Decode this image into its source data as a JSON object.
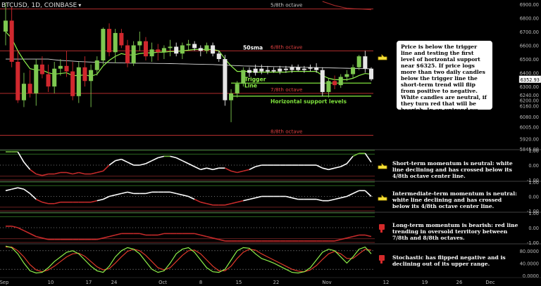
{
  "header": {
    "symbol_label": "BTCUSD, 1D, COINBASE",
    "arrow_glyph": "▾"
  },
  "colors": {
    "bullish_candle": "#7ec850",
    "bearish_candle": "#d0282e",
    "neutral_candle": "#e6e6e6",
    "octave_line": "#b32d2d",
    "sma_line": "#d8d8d8",
    "trigger_line": "#8ef04a",
    "support_line": "#7ee03c",
    "momentum_white": "#ffffff",
    "momentum_red": "#c62a2a",
    "momentum_green": "#6fb83a",
    "stoch_k": "#8ef04a",
    "stoch_d": "#e03a2a",
    "background": "#000000"
  },
  "chart_data": [
    {
      "type": "candlestick",
      "title": "",
      "ylim": [
        5845,
        6920
      ],
      "yticks": [
        "6900.00",
        "6800.00",
        "6700.00",
        "6600.00",
        "6500.00",
        "6400.00",
        "6300.00",
        "6240.00",
        "6200.00",
        "6160.00",
        "6080.00",
        "6005.00",
        "5920.00",
        "5845.00"
      ],
      "price_label": "6352.93",
      "x_ticks": [
        "Sep",
        "10",
        "17",
        "24",
        "Oct",
        "8",
        "15",
        "22",
        "Nov",
        "12",
        "19",
        "26",
        "Dec"
      ],
      "annotations": {
        "octave_5_8": "5/8th octave",
        "octave_6_8": "6/8th octave",
        "octave_7_8": "7/8th octave",
        "octave_8_8": "8/8th octave",
        "sma": "50sma",
        "trigger_line_1": "Trigger",
        "trigger_line_2": "Line",
        "support": "Horizontal support levels"
      },
      "candles": [
        {
          "o": 6700,
          "h": 6910,
          "l": 6600,
          "c": 6780
        },
        {
          "o": 6780,
          "h": 6880,
          "l": 6440,
          "c": 6480
        },
        {
          "o": 6480,
          "h": 6560,
          "l": 6180,
          "c": 6200
        },
        {
          "o": 6200,
          "h": 6400,
          "l": 6150,
          "c": 6320
        },
        {
          "o": 6320,
          "h": 6420,
          "l": 6220,
          "c": 6250
        },
        {
          "o": 6250,
          "h": 6500,
          "l": 6160,
          "c": 6460
        },
        {
          "o": 6460,
          "h": 6520,
          "l": 6360,
          "c": 6390
        },
        {
          "o": 6390,
          "h": 6460,
          "l": 6260,
          "c": 6300
        },
        {
          "o": 6300,
          "h": 6480,
          "l": 6250,
          "c": 6430
        },
        {
          "o": 6430,
          "h": 6500,
          "l": 6380,
          "c": 6450
        },
        {
          "o": 6450,
          "h": 6560,
          "l": 6370,
          "c": 6410
        },
        {
          "o": 6410,
          "h": 6480,
          "l": 6200,
          "c": 6230
        },
        {
          "o": 6230,
          "h": 6480,
          "l": 6180,
          "c": 6440
        },
        {
          "o": 6440,
          "h": 6520,
          "l": 6300,
          "c": 6340
        },
        {
          "o": 6340,
          "h": 6460,
          "l": 6150,
          "c": 6420
        },
        {
          "o": 6420,
          "h": 6520,
          "l": 6380,
          "c": 6490
        },
        {
          "o": 6490,
          "h": 6730,
          "l": 6460,
          "c": 6720
        },
        {
          "o": 6720,
          "h": 6760,
          "l": 6520,
          "c": 6550
        },
        {
          "o": 6550,
          "h": 6720,
          "l": 6470,
          "c": 6690
        },
        {
          "o": 6690,
          "h": 6720,
          "l": 6580,
          "c": 6600
        },
        {
          "o": 6600,
          "h": 6640,
          "l": 6440,
          "c": 6470
        },
        {
          "o": 6470,
          "h": 6630,
          "l": 6450,
          "c": 6600
        },
        {
          "o": 6600,
          "h": 6700,
          "l": 6560,
          "c": 6630
        },
        {
          "o": 6630,
          "h": 6660,
          "l": 6490,
          "c": 6520
        },
        {
          "o": 6520,
          "h": 6620,
          "l": 6480,
          "c": 6570
        },
        {
          "o": 6570,
          "h": 6610,
          "l": 6490,
          "c": 6550
        },
        {
          "o": 6550,
          "h": 6600,
          "l": 6500,
          "c": 6580
        },
        {
          "o": 6580,
          "h": 6640,
          "l": 6520,
          "c": 6590
        },
        {
          "o": 6590,
          "h": 6620,
          "l": 6520,
          "c": 6540
        },
        {
          "o": 6540,
          "h": 6620,
          "l": 6500,
          "c": 6600
        },
        {
          "o": 6600,
          "h": 6640,
          "l": 6560,
          "c": 6610
        },
        {
          "o": 6610,
          "h": 6630,
          "l": 6560,
          "c": 6580
        },
        {
          "o": 6580,
          "h": 6600,
          "l": 6520,
          "c": 6560
        },
        {
          "o": 6560,
          "h": 6620,
          "l": 6540,
          "c": 6600
        },
        {
          "o": 6600,
          "h": 6620,
          "l": 6520,
          "c": 6540
        },
        {
          "o": 6540,
          "h": 6560,
          "l": 6480,
          "c": 6500
        },
        {
          "o": 6500,
          "h": 6530,
          "l": 6160,
          "c": 6200
        },
        {
          "o": 6200,
          "h": 6280,
          "l": 6040,
          "c": 6250
        },
        {
          "o": 6250,
          "h": 6340,
          "l": 6220,
          "c": 6320
        },
        {
          "o": 6320,
          "h": 6440,
          "l": 6300,
          "c": 6420
        },
        {
          "o": 6420,
          "h": 6440,
          "l": 6370,
          "c": 6400
        },
        {
          "o": 6400,
          "h": 6460,
          "l": 6380,
          "c": 6430
        },
        {
          "o": 6430,
          "h": 6460,
          "l": 6390,
          "c": 6410
        },
        {
          "o": 6410,
          "h": 6450,
          "l": 6390,
          "c": 6420
        },
        {
          "o": 6420,
          "h": 6440,
          "l": 6400,
          "c": 6410
        },
        {
          "o": 6410,
          "h": 6450,
          "l": 6390,
          "c": 6430
        },
        {
          "o": 6430,
          "h": 6450,
          "l": 6400,
          "c": 6420
        },
        {
          "o": 6420,
          "h": 6460,
          "l": 6400,
          "c": 6440
        },
        {
          "o": 6440,
          "h": 6460,
          "l": 6410,
          "c": 6420
        },
        {
          "o": 6420,
          "h": 6450,
          "l": 6400,
          "c": 6430
        },
        {
          "o": 6430,
          "h": 6460,
          "l": 6410,
          "c": 6440
        },
        {
          "o": 6440,
          "h": 6470,
          "l": 6400,
          "c": 6420
        },
        {
          "o": 6420,
          "h": 6440,
          "l": 6230,
          "c": 6260
        },
        {
          "o": 6260,
          "h": 6360,
          "l": 6220,
          "c": 6340
        },
        {
          "o": 6340,
          "h": 6380,
          "l": 6280,
          "c": 6310
        },
        {
          "o": 6310,
          "h": 6390,
          "l": 6290,
          "c": 6370
        },
        {
          "o": 6370,
          "h": 6420,
          "l": 6340,
          "c": 6390
        },
        {
          "o": 6390,
          "h": 6460,
          "l": 6360,
          "c": 6440
        },
        {
          "o": 6440,
          "h": 6530,
          "l": 6420,
          "c": 6520
        },
        {
          "o": 6520,
          "h": 6560,
          "l": 6400,
          "c": 6430
        },
        {
          "o": 6430,
          "h": 6440,
          "l": 6340,
          "c": 6353
        }
      ],
      "sma50": [
        6500,
        6500,
        6500,
        6500,
        6500,
        6500,
        6500,
        6500,
        6495,
        6490,
        6488,
        6485,
        6482,
        6480,
        6478,
        6476,
        6475,
        6474,
        6473,
        6472,
        6471,
        6470,
        6470,
        6470,
        6469,
        6468,
        6468,
        6467,
        6466,
        6465,
        6464,
        6463,
        6462,
        6461,
        6460,
        6458,
        6456,
        6454,
        6452,
        6450,
        6449,
        6448,
        6447,
        6446,
        6445,
        6444,
        6443,
        6442,
        6441,
        6440,
        6439,
        6438,
        6437,
        6436,
        6435,
        6434,
        6433,
        6432,
        6431,
        6430,
        6429
      ],
      "trigger": [
        6700,
        6650,
        6560,
        6490,
        6430,
        6420,
        6420,
        6400,
        6390,
        6395,
        6400,
        6380,
        6380,
        6385,
        6375,
        6390,
        6450,
        6490,
        6520,
        6540,
        6530,
        6530,
        6540,
        6545,
        6545,
        6550,
        6550,
        6555,
        6555,
        6560,
        6565,
        6570,
        6570,
        6570,
        6570,
        6560,
        6500,
        6450,
        6410,
        6410,
        6410,
        6405,
        6405,
        6405,
        6405,
        6405,
        6405,
        6410,
        6410,
        6410,
        6410,
        6410,
        6380,
        6360,
        6350,
        6350,
        6350,
        6360,
        6380,
        6395,
        6390
      ],
      "octaves": {
        "o5": 6865,
        "o6": 6560,
        "o7": 6250,
        "o8": 5945
      },
      "support_levels": [
        6325,
        6230
      ],
      "support_start_index": 37,
      "support_end_index": 60
    },
    {
      "type": "line",
      "name": "short-term momentum",
      "ylim": [
        -1,
        1
      ],
      "yticks": [
        "1.00",
        "0.00",
        "-1.00"
      ],
      "values": [
        0.9,
        0.9,
        0.9,
        0.2,
        -0.3,
        -0.6,
        -0.7,
        -0.6,
        -0.6,
        -0.5,
        -0.5,
        -0.6,
        -0.5,
        -0.6,
        -0.6,
        -0.5,
        -0.4,
        0.0,
        0.3,
        0.4,
        0.2,
        0.0,
        0.0,
        0.1,
        0.3,
        0.5,
        0.6,
        0.6,
        0.5,
        0.3,
        0.1,
        -0.1,
        -0.3,
        -0.2,
        -0.3,
        -0.2,
        -0.2,
        -0.4,
        -0.5,
        -0.4,
        -0.3,
        -0.1,
        0.0,
        0.0,
        0.0,
        0.0,
        0.0,
        0.0,
        0.0,
        0.0,
        0.0,
        0.0,
        -0.2,
        -0.3,
        -0.2,
        -0.1,
        0.1,
        0.6,
        0.8,
        0.8,
        0.2
      ],
      "note": "Short-term momentum is neutral: white line declining and has crossed below its 4/8th octave center line."
    },
    {
      "type": "line",
      "name": "intermediate-term momentum",
      "ylim": [
        -1,
        1
      ],
      "yticks": [
        "1.00",
        "0.00",
        "-1.00"
      ],
      "values": [
        0.4,
        0.5,
        0.6,
        0.5,
        0.2,
        -0.2,
        -0.4,
        -0.5,
        -0.5,
        -0.4,
        -0.4,
        -0.4,
        -0.4,
        -0.4,
        -0.4,
        -0.3,
        -0.2,
        0.0,
        0.1,
        0.2,
        0.3,
        0.2,
        0.2,
        0.2,
        0.3,
        0.3,
        0.3,
        0.3,
        0.2,
        0.1,
        0.0,
        -0.2,
        -0.4,
        -0.5,
        -0.6,
        -0.6,
        -0.6,
        -0.5,
        -0.4,
        -0.3,
        -0.2,
        -0.1,
        0.0,
        0.0,
        0.0,
        0.0,
        0.0,
        -0.1,
        -0.2,
        -0.2,
        -0.2,
        -0.2,
        -0.3,
        -0.3,
        -0.2,
        -0.1,
        0.0,
        0.2,
        0.4,
        0.4,
        0.0
      ],
      "note": "Intermediate-term momentum is neutral: white line declining and has crossed below its 4/8th octave center line."
    },
    {
      "type": "line",
      "name": "long-term momentum",
      "ylim": [
        -1,
        1
      ],
      "yticks": [
        "1.00",
        "0.00",
        "-1.00"
      ],
      "values": [
        0.1,
        0.1,
        0.0,
        -0.2,
        -0.4,
        -0.6,
        -0.7,
        -0.8,
        -0.8,
        -0.8,
        -0.8,
        -0.8,
        -0.8,
        -0.8,
        -0.8,
        -0.8,
        -0.7,
        -0.6,
        -0.5,
        -0.4,
        -0.4,
        -0.4,
        -0.4,
        -0.5,
        -0.5,
        -0.5,
        -0.4,
        -0.4,
        -0.4,
        -0.4,
        -0.4,
        -0.4,
        -0.5,
        -0.6,
        -0.7,
        -0.8,
        -0.9,
        -0.9,
        -0.9,
        -0.9,
        -0.9,
        -0.9,
        -0.9,
        -0.9,
        -0.9,
        -0.9,
        -0.9,
        -0.9,
        -0.9,
        -0.9,
        -0.9,
        -0.9,
        -0.9,
        -0.9,
        -0.9,
        -0.8,
        -0.7,
        -0.6,
        -0.5,
        -0.5,
        -0.6
      ],
      "note": "Long-term momentum is bearish: red line trending in oversold territory between 7/8th and 8/8th octaves."
    },
    {
      "type": "line",
      "name": "stochastic",
      "ylim": [
        0,
        100
      ],
      "yticks": [
        "80.0000",
        "40.0000",
        "0.0000"
      ],
      "k": [
        95,
        90,
        70,
        40,
        15,
        8,
        10,
        25,
        45,
        60,
        75,
        80,
        70,
        50,
        30,
        15,
        10,
        30,
        60,
        80,
        90,
        85,
        70,
        45,
        20,
        10,
        15,
        40,
        70,
        85,
        90,
        75,
        50,
        25,
        12,
        10,
        20,
        50,
        80,
        90,
        88,
        70,
        55,
        48,
        40,
        30,
        20,
        10,
        8,
        12,
        25,
        50,
        75,
        85,
        80,
        60,
        40,
        60,
        85,
        92,
        70
      ],
      "d": [
        92,
        92,
        80,
        60,
        35,
        18,
        12,
        18,
        30,
        45,
        60,
        70,
        72,
        62,
        45,
        28,
        18,
        22,
        40,
        60,
        78,
        85,
        80,
        65,
        45,
        25,
        18,
        25,
        45,
        65,
        80,
        82,
        70,
        50,
        30,
        15,
        15,
        30,
        55,
        75,
        85,
        82,
        70,
        60,
        50,
        40,
        30,
        20,
        14,
        12,
        18,
        32,
        52,
        70,
        78,
        70,
        55,
        55,
        70,
        85,
        82
      ],
      "note": "Stochastic has flipped negative and is declining out of its upper range."
    }
  ]
}
